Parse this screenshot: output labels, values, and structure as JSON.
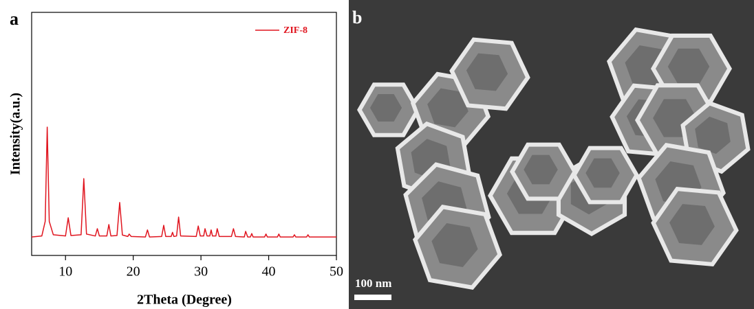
{
  "chart_data": {
    "type": "line",
    "panel_label": "a",
    "xlabel": "2Theta (Degree)",
    "ylabel": "Intensity(a.u.)",
    "xlim": [
      5,
      50
    ],
    "xticks": [
      10,
      20,
      30,
      40,
      50
    ],
    "ylim": [
      0,
      100
    ],
    "legend": "top-right",
    "x": [
      5,
      6.5,
      7.0,
      7.3,
      7.6,
      8.2,
      10.0,
      10.4,
      10.8,
      12.3,
      12.7,
      13.1,
      14.4,
      14.7,
      15.0,
      16.1,
      16.4,
      16.7,
      17.6,
      18.0,
      18.4,
      19.2,
      19.4,
      19.7,
      21.8,
      22.1,
      22.4,
      24.2,
      24.5,
      24.8,
      25.6,
      25.8,
      26.0,
      26.4,
      26.7,
      27.0,
      29.3,
      29.6,
      29.9,
      30.4,
      30.6,
      30.9,
      31.3,
      31.5,
      31.7,
      32.2,
      32.4,
      32.7,
      34.5,
      34.8,
      35.1,
      36.4,
      36.6,
      36.9,
      37.3,
      37.5,
      37.7,
      39.4,
      39.6,
      39.8,
      41.3,
      41.5,
      41.7,
      43.6,
      43.8,
      44.0,
      45.6,
      45.8,
      46.0,
      50
    ],
    "series": [
      {
        "name": "ZIF-8",
        "color": "#e0141e",
        "values": [
          7.6,
          8.0,
          14,
          52.8,
          14,
          8.5,
          8.0,
          15.5,
          8.2,
          8.5,
          31.6,
          8.8,
          8.0,
          11,
          8.0,
          8.0,
          12.7,
          8.0,
          8.2,
          21.8,
          8.4,
          7.8,
          8.8,
          7.8,
          7.6,
          10.5,
          7.6,
          7.8,
          12.4,
          7.8,
          7.8,
          9.5,
          7.8,
          8.0,
          15.8,
          8.0,
          7.8,
          12.1,
          8.0,
          8.0,
          11,
          8.0,
          8.0,
          10.5,
          8.0,
          8.0,
          11,
          7.8,
          7.8,
          11,
          7.8,
          7.6,
          9.9,
          7.6,
          7.6,
          9,
          7.6,
          7.6,
          8.8,
          7.6,
          7.6,
          8.8,
          7.6,
          7.6,
          8.5,
          7.6,
          7.6,
          8.5,
          7.6,
          7.6
        ]
      }
    ]
  },
  "sem_image": {
    "panel_label": "b",
    "scale_bar": "100 nm"
  }
}
